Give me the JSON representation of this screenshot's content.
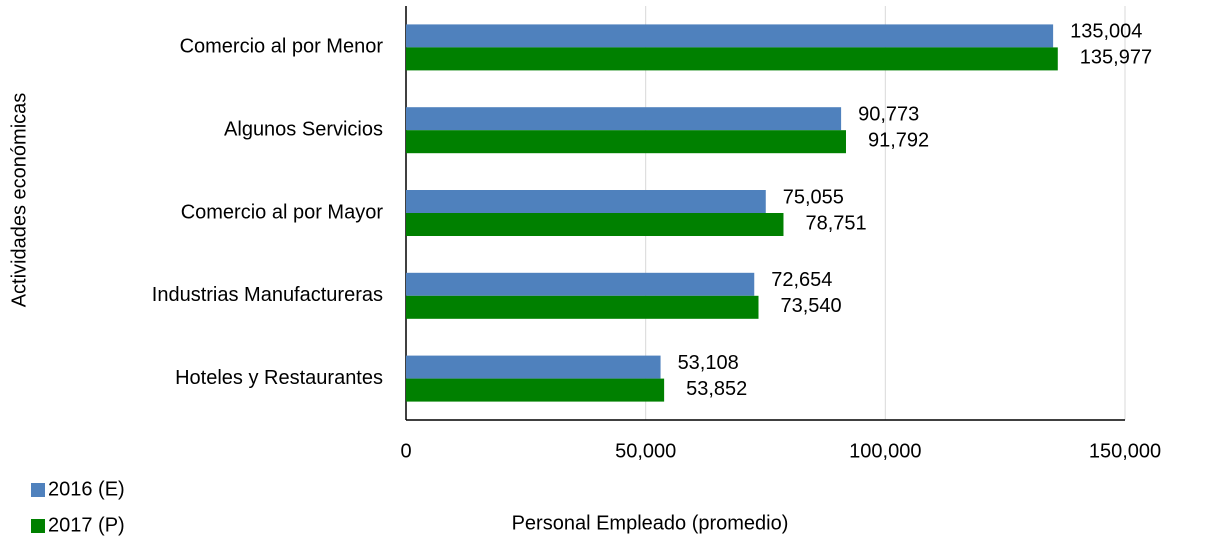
{
  "chart_data": {
    "type": "hbar",
    "categories": [
      "Comercio al por Menor",
      "Algunos Servicios",
      "Comercio al por Mayor",
      "Industrias Manufactureras",
      "Hoteles y Restaurantes"
    ],
    "series": [
      {
        "name": "2016 (E)",
        "color": "#4f81bd",
        "values": [
          135004,
          90773,
          75055,
          72654,
          53108
        ],
        "value_labels": [
          "135,004",
          "90,773",
          "75,055",
          "72,654",
          "53,108"
        ]
      },
      {
        "name": "2017 (P)",
        "color": "#008000",
        "values": [
          135977,
          91792,
          78751,
          73540,
          53852
        ],
        "value_labels": [
          "135,977",
          "91,792",
          "78,751",
          "73,540",
          "53,852"
        ]
      }
    ],
    "xlim": [
      0,
      150000
    ],
    "xticks": [
      0,
      {
        "value": 50000,
        "label": "50,000"
      },
      {
        "value": 100000,
        "label": "100,000"
      },
      {
        "value": 150000,
        "label": "150,000"
      }
    ],
    "xlabel": "Personal Empleado (promedio)",
    "ylabel": "Actividades económicas",
    "grid": true,
    "legend": "bottom-left"
  }
}
